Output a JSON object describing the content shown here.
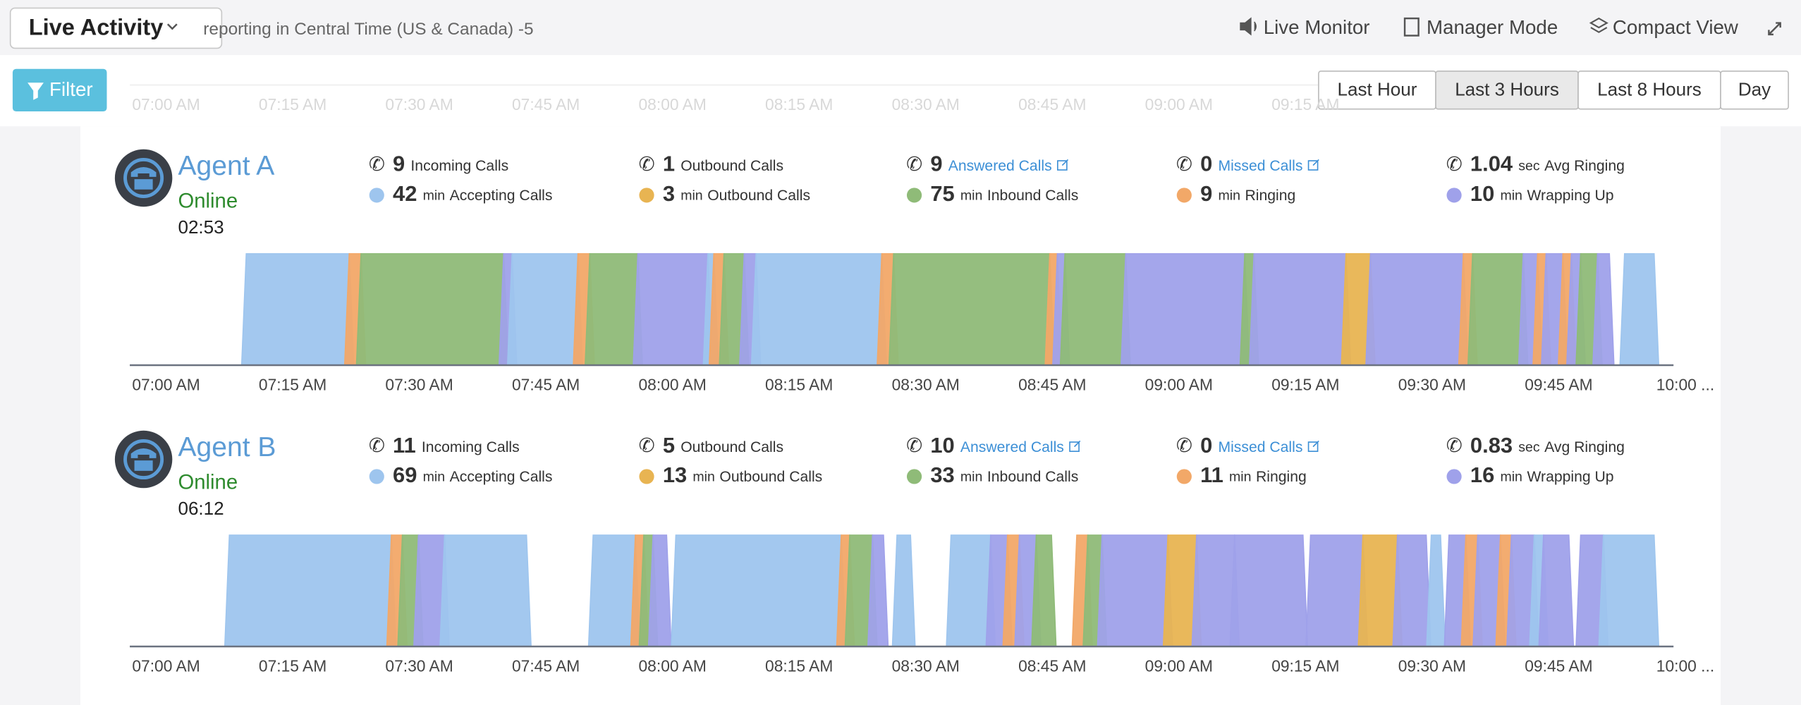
{
  "header": {
    "title": "Live Activity",
    "subtitle": "reporting in Central Time (US & Canada) -5",
    "nav": [
      "Live Monitor",
      "Manager Mode",
      "Compact View"
    ]
  },
  "filter": "Filter",
  "ranges": [
    "Last Hour",
    "Last 3 Hours",
    "Last 8 Hours",
    "Day"
  ],
  "active_range": 1,
  "axis": {
    "xlim": [
      -4.3,
      178.6
    ],
    "xticks": [
      {
        "value": 0,
        "label": "07:00 AM"
      },
      {
        "value": 15,
        "label": "07:15 AM"
      },
      {
        "value": 30,
        "label": "07:30 AM"
      },
      {
        "value": 45,
        "label": "07:45 AM"
      },
      {
        "value": 60,
        "label": "08:00 AM"
      },
      {
        "value": 75,
        "label": "08:15 AM"
      },
      {
        "value": 90,
        "label": "08:30 AM"
      },
      {
        "value": 105,
        "label": "08:45 AM"
      },
      {
        "value": 120,
        "label": "09:00 AM"
      },
      {
        "value": 135,
        "label": "09:15 AM"
      },
      {
        "value": 150,
        "label": "09:30 AM"
      },
      {
        "value": 165,
        "label": "09:45 AM"
      },
      {
        "value": 180,
        "label": "10:00 ..."
      }
    ]
  },
  "agents": [
    {
      "name": "Agent A",
      "status": "Online",
      "time": "02:53",
      "stats": [
        {
          "value": 9,
          "label": "Incoming Calls"
        },
        {
          "value": 1,
          "label": "Outbound Calls"
        },
        {
          "value": 9,
          "label": "Answered Calls",
          "link": true
        },
        {
          "value": 0,
          "label": "Missed Calls",
          "link": true
        },
        {
          "value": 1.04,
          "unit": "sec",
          "label": "Avg Ringing"
        },
        {
          "value": 42,
          "unit": "min",
          "label": "Accepting Calls",
          "color": "#9ec5ee"
        },
        {
          "value": 3,
          "unit": "min",
          "label": "Outbound Calls",
          "color": "#e8b452"
        },
        {
          "value": 75,
          "unit": "min",
          "label": "Inbound Calls",
          "color": "#8fbb78"
        },
        {
          "value": 9,
          "unit": "min",
          "label": "Ringing",
          "color": "#f2a868"
        },
        {
          "value": 10,
          "unit": "min",
          "label": "Wrapping Up",
          "color": "#9fa1ea"
        }
      ],
      "segments": [
        {
          "color": "#9ec5ee",
          "start": 9.5,
          "end": 21.7
        },
        {
          "color": "#f2a868",
          "start": 21.7,
          "end": 23.1
        },
        {
          "color": "#8fbb78",
          "start": 23.1,
          "end": 40
        },
        {
          "color": "#9fa1ea",
          "start": 40,
          "end": 41
        },
        {
          "color": "#9ec5ee",
          "start": 41,
          "end": 48.8
        },
        {
          "color": "#f2a868",
          "start": 48.8,
          "end": 50.2
        },
        {
          "color": "#8fbb78",
          "start": 50.2,
          "end": 55.9
        },
        {
          "color": "#9fa1ea",
          "start": 55.9,
          "end": 64.2
        },
        {
          "color": "#9ec5ee",
          "start": 64.2,
          "end": 64.9
        },
        {
          "color": "#f2a868",
          "start": 64.9,
          "end": 66.1
        },
        {
          "color": "#8fbb78",
          "start": 66.1,
          "end": 68.5
        },
        {
          "color": "#9fa1ea",
          "start": 68.5,
          "end": 69.9
        },
        {
          "color": "#9ec5ee",
          "start": 69.9,
          "end": 84.8
        },
        {
          "color": "#f2a868",
          "start": 84.8,
          "end": 86.2
        },
        {
          "color": "#8fbb78",
          "start": 86.2,
          "end": 104.7
        },
        {
          "color": "#f2a868",
          "start": 104.7,
          "end": 105.6
        },
        {
          "color": "#9fa1ea",
          "start": 105.6,
          "end": 106.5
        },
        {
          "color": "#8fbb78",
          "start": 106.5,
          "end": 113.7
        },
        {
          "color": "#9fa1ea",
          "start": 113.7,
          "end": 127.8
        },
        {
          "color": "#8fbb78",
          "start": 127.8,
          "end": 128.9
        },
        {
          "color": "#9fa1ea",
          "start": 128.9,
          "end": 139.8
        },
        {
          "color": "#e8b452",
          "start": 139.8,
          "end": 142.7
        },
        {
          "color": "#9fa1ea",
          "start": 142.7,
          "end": 153.7
        },
        {
          "color": "#f2a868",
          "start": 153.7,
          "end": 154.8
        },
        {
          "color": "#8fbb78",
          "start": 154.8,
          "end": 160.8
        },
        {
          "color": "#9fa1ea",
          "start": 160.8,
          "end": 162.5
        },
        {
          "color": "#f2a868",
          "start": 162.5,
          "end": 163.5
        },
        {
          "color": "#9fa1ea",
          "start": 163.5,
          "end": 165.5
        },
        {
          "color": "#f2a868",
          "start": 165.5,
          "end": 166.5
        },
        {
          "color": "#9fa1ea",
          "start": 166.5,
          "end": 167.6
        },
        {
          "color": "#8fbb78",
          "start": 167.6,
          "end": 169.6
        },
        {
          "color": "#9fa1ea",
          "start": 169.6,
          "end": 171
        },
        {
          "color": "#9ec5ee",
          "start": 172.8,
          "end": 176.3
        }
      ]
    },
    {
      "name": "Agent B",
      "status": "Online",
      "time": "06:12",
      "stats": [
        {
          "value": 11,
          "label": "Incoming Calls"
        },
        {
          "value": 5,
          "label": "Outbound Calls"
        },
        {
          "value": 10,
          "label": "Answered Calls",
          "link": true
        },
        {
          "value": 0,
          "label": "Missed Calls",
          "link": true
        },
        {
          "value": 0.83,
          "unit": "sec",
          "label": "Avg Ringing"
        },
        {
          "value": 69,
          "unit": "min",
          "label": "Accepting Calls",
          "color": "#9ec5ee"
        },
        {
          "value": 13,
          "unit": "min",
          "label": "Outbound Calls",
          "color": "#e8b452"
        },
        {
          "value": 33,
          "unit": "min",
          "label": "Inbound Calls",
          "color": "#8fbb78"
        },
        {
          "value": 11,
          "unit": "min",
          "label": "Ringing",
          "color": "#f2a868"
        },
        {
          "value": 16,
          "unit": "min",
          "label": "Wrapping Up",
          "color": "#9fa1ea"
        }
      ],
      "segments": [
        {
          "color": "#9ec5ee",
          "start": 7.5,
          "end": 26.7
        },
        {
          "color": "#f2a868",
          "start": 26.7,
          "end": 28
        },
        {
          "color": "#8fbb78",
          "start": 28,
          "end": 29.9
        },
        {
          "color": "#9fa1ea",
          "start": 29.9,
          "end": 33
        },
        {
          "color": "#9ec5ee",
          "start": 33,
          "end": 42.7
        },
        {
          "color": "#9ec5ee",
          "start": 50.6,
          "end": 55.6
        },
        {
          "color": "#f2a868",
          "start": 55.6,
          "end": 56.6
        },
        {
          "color": "#8fbb78",
          "start": 56.6,
          "end": 57.7
        },
        {
          "color": "#9fa1ea",
          "start": 57.7,
          "end": 59.3
        },
        {
          "color": "#9ec5ee",
          "start": 60.4,
          "end": 80
        },
        {
          "color": "#f2a868",
          "start": 80,
          "end": 81
        },
        {
          "color": "#8fbb78",
          "start": 81,
          "end": 83.7
        },
        {
          "color": "#9fa1ea",
          "start": 83.7,
          "end": 85
        },
        {
          "color": "#9ec5ee",
          "start": 86.6,
          "end": 88.2
        },
        {
          "color": "#9ec5ee",
          "start": 93,
          "end": 97.7
        },
        {
          "color": "#9fa1ea",
          "start": 97.7,
          "end": 99.7
        },
        {
          "color": "#f2a868",
          "start": 99.7,
          "end": 101.1
        },
        {
          "color": "#9fa1ea",
          "start": 101.1,
          "end": 103.1
        },
        {
          "color": "#8fbb78",
          "start": 103.1,
          "end": 104.9
        },
        {
          "color": "#f2a868",
          "start": 107.9,
          "end": 109.2
        },
        {
          "color": "#8fbb78",
          "start": 109.2,
          "end": 110.9
        },
        {
          "color": "#9fa1ea",
          "start": 110.9,
          "end": 118.7
        },
        {
          "color": "#e8b452",
          "start": 118.7,
          "end": 122.1
        },
        {
          "color": "#9fa1ea",
          "start": 122.1,
          "end": 126.6
        },
        {
          "color": "#9fa1ea",
          "start": 126.6,
          "end": 134.7
        },
        {
          "color": "#9fa1ea",
          "start": 135.6,
          "end": 141.8
        },
        {
          "color": "#e8b452",
          "start": 141.8,
          "end": 145.9
        },
        {
          "color": "#9fa1ea",
          "start": 145.9,
          "end": 149.3
        },
        {
          "color": "#9ec5ee",
          "start": 149.9,
          "end": 151
        },
        {
          "color": "#9fa1ea",
          "start": 152,
          "end": 154
        },
        {
          "color": "#f2a868",
          "start": 154,
          "end": 155.4
        },
        {
          "color": "#9fa1ea",
          "start": 155.4,
          "end": 158.1
        },
        {
          "color": "#f2a868",
          "start": 158.1,
          "end": 159.4
        },
        {
          "color": "#9fa1ea",
          "start": 159.4,
          "end": 162.1
        },
        {
          "color": "#9ec5ee",
          "start": 162.1,
          "end": 163.2
        },
        {
          "color": "#9fa1ea",
          "start": 163.2,
          "end": 166.2
        },
        {
          "color": "#9fa1ea",
          "start": 167.6,
          "end": 170.3
        },
        {
          "color": "#9ec5ee",
          "start": 170.3,
          "end": 176.3
        }
      ]
    }
  ]
}
